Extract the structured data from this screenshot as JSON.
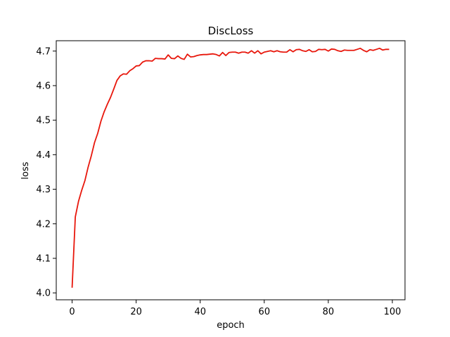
{
  "chart_data": {
    "type": "line",
    "title": "DiscLoss",
    "xlabel": "epoch",
    "ylabel": "loss",
    "xlim": [
      -4.95,
      103.95
    ],
    "ylim": [
      3.98,
      4.73
    ],
    "xticks": [
      0,
      20,
      40,
      60,
      80,
      100
    ],
    "yticks": [
      4.0,
      4.1,
      4.2,
      4.3,
      4.4,
      4.5,
      4.6,
      4.7
    ],
    "xtick_labels": [
      "0",
      "20",
      "40",
      "60",
      "80",
      "100"
    ],
    "ytick_labels": [
      "4.0",
      "4.1",
      "4.2",
      "4.3",
      "4.4",
      "4.5",
      "4.6",
      "4.7"
    ],
    "grid": false,
    "series": [
      {
        "color": "#e8170c",
        "x": [
          0,
          1,
          2,
          3,
          4,
          5,
          6,
          7,
          8,
          9,
          10,
          11,
          12,
          13,
          14,
          15,
          16,
          17,
          18,
          19,
          20,
          21,
          22,
          23,
          24,
          25,
          26,
          27,
          28,
          29,
          30,
          31,
          32,
          33,
          34,
          35,
          36,
          37,
          38,
          39,
          40,
          41,
          42,
          43,
          44,
          45,
          46,
          47,
          48,
          49,
          50,
          51,
          52,
          53,
          54,
          55,
          56,
          57,
          58,
          59,
          60,
          61,
          62,
          63,
          64,
          65,
          66,
          67,
          68,
          69,
          70,
          71,
          72,
          73,
          74,
          75,
          76,
          77,
          78,
          79,
          80,
          81,
          82,
          83,
          84,
          85,
          86,
          87,
          88,
          89,
          90,
          91,
          92,
          93,
          94,
          95,
          96,
          97,
          98,
          99
        ],
        "y": [
          4.015,
          4.22,
          4.265,
          4.297,
          4.325,
          4.364,
          4.397,
          4.435,
          4.462,
          4.497,
          4.524,
          4.546,
          4.566,
          4.59,
          4.615,
          4.628,
          4.634,
          4.633,
          4.643,
          4.649,
          4.657,
          4.658,
          4.668,
          4.672,
          4.672,
          4.671,
          4.679,
          4.678,
          4.678,
          4.677,
          4.689,
          4.679,
          4.678,
          4.686,
          4.679,
          4.676,
          4.691,
          4.683,
          4.684,
          4.687,
          4.689,
          4.69,
          4.69,
          4.691,
          4.692,
          4.69,
          4.686,
          4.696,
          4.687,
          4.696,
          4.697,
          4.697,
          4.694,
          4.697,
          4.697,
          4.694,
          4.701,
          4.694,
          4.701,
          4.692,
          4.697,
          4.699,
          4.701,
          4.698,
          4.701,
          4.698,
          4.697,
          4.697,
          4.704,
          4.698,
          4.704,
          4.705,
          4.701,
          4.699,
          4.704,
          4.698,
          4.699,
          4.705,
          4.704,
          4.705,
          4.7,
          4.706,
          4.705,
          4.701,
          4.699,
          4.703,
          4.702,
          4.702,
          4.702,
          4.705,
          4.708,
          4.702,
          4.698,
          4.704,
          4.702,
          4.705,
          4.708,
          4.703,
          4.705,
          4.705
        ]
      }
    ]
  }
}
